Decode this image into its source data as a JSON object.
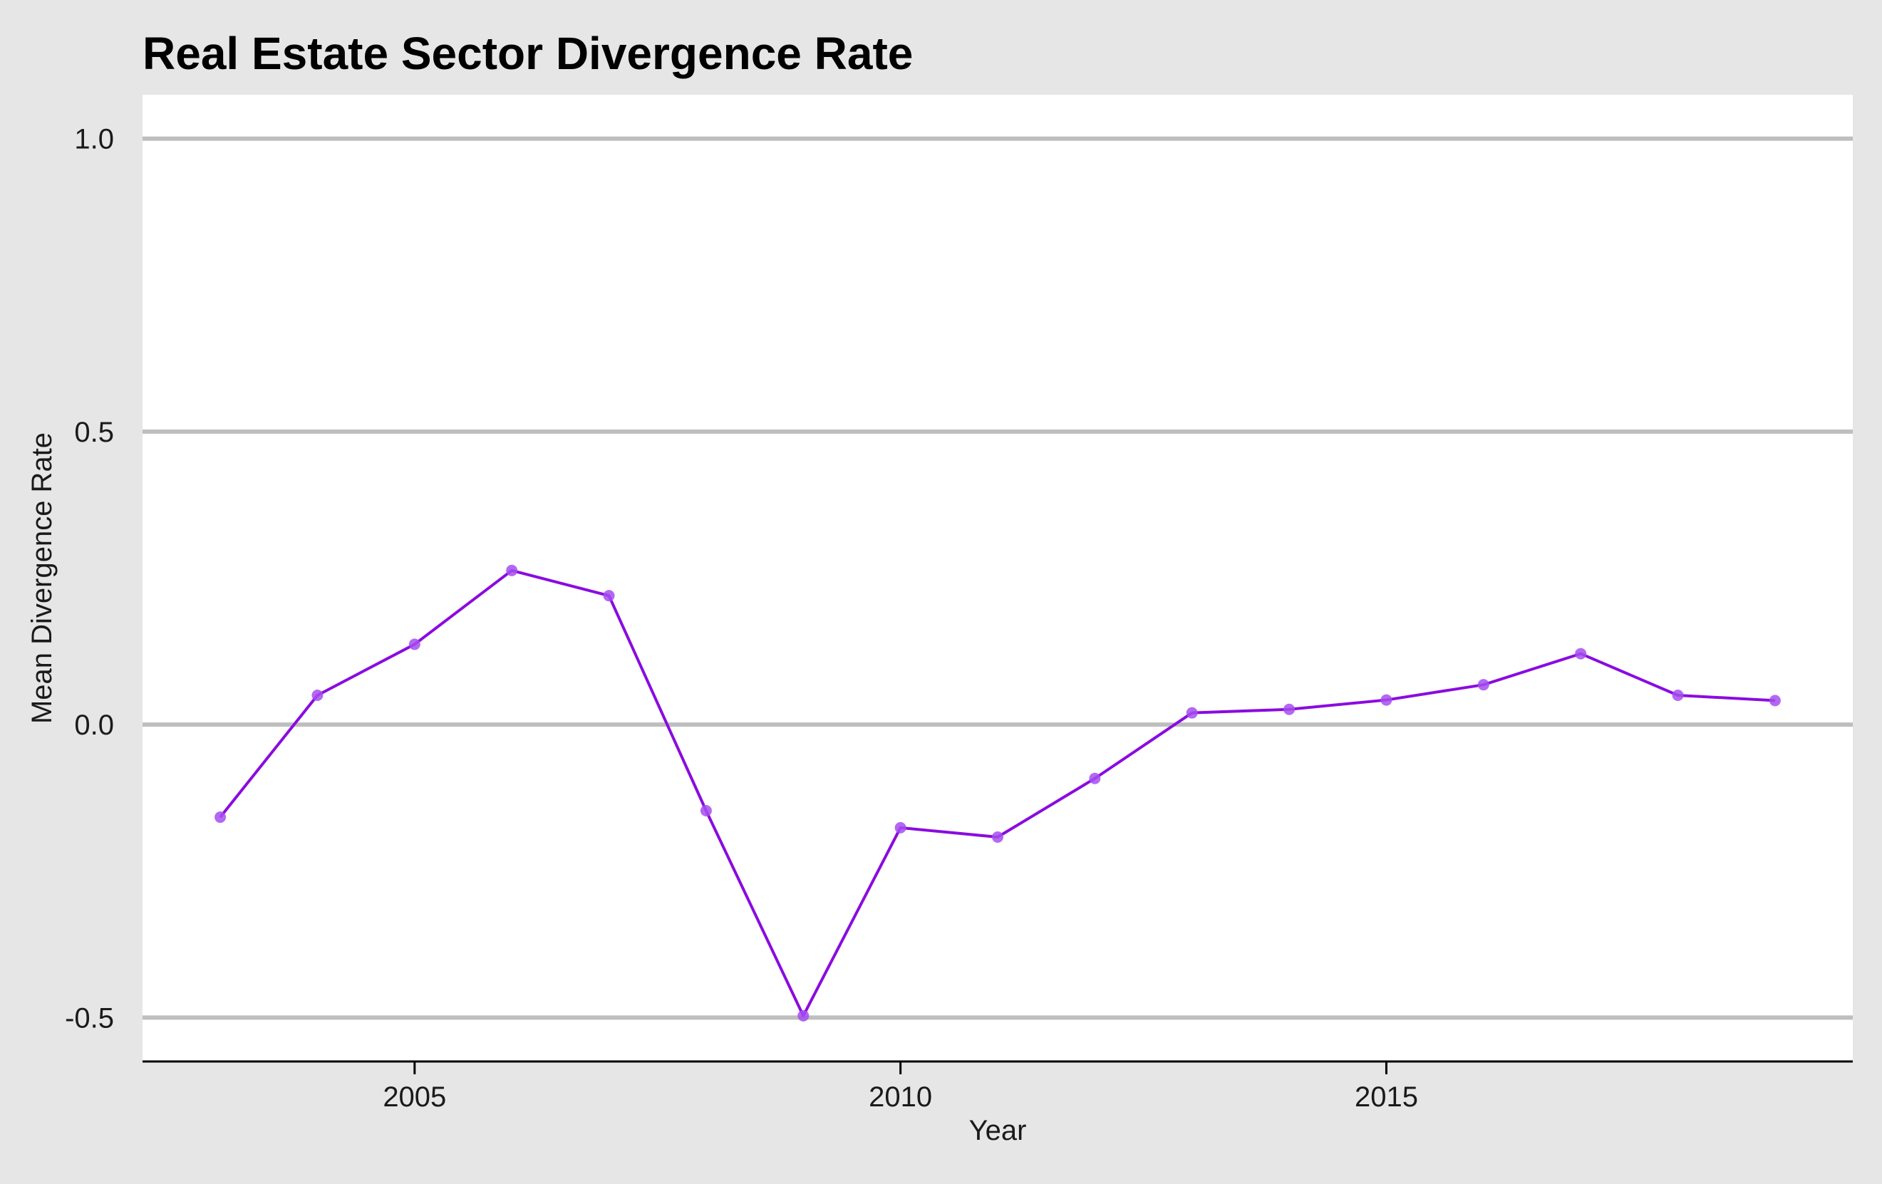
{
  "chart_data": {
    "type": "line",
    "title": "Real Estate Sector Divergence Rate",
    "xlabel": "Year",
    "ylabel": "Mean Divergence Rate",
    "x": [
      2003,
      2004,
      2005,
      2006,
      2007,
      2008,
      2009,
      2010,
      2011,
      2012,
      2013,
      2014,
      2015,
      2016,
      2017,
      2018,
      2019
    ],
    "series": [
      {
        "values": [
          -0.158,
          0.05,
          0.137,
          0.263,
          0.22,
          -0.147,
          -0.497,
          -0.176,
          -0.192,
          -0.092,
          0.02,
          0.026,
          0.042,
          0.068,
          0.121,
          0.05,
          0.041
        ],
        "color": "#8a0be0"
      }
    ],
    "xlim": [
      2002.2,
      2019.8
    ],
    "ylim": [
      -0.575,
      1.075
    ],
    "xticks": [
      2005,
      2010,
      2015
    ],
    "xtick_labels": [
      "2005",
      "2010",
      "2015"
    ],
    "yticks": [
      -0.5,
      0,
      0.5,
      1
    ],
    "ytick_labels": [
      "-0.5",
      "0.0",
      "0.5",
      "1.0"
    ],
    "grid": "horizontal",
    "colors": {
      "background": "#e6e6e6",
      "panel": "#ffffff",
      "grid": "#bebebe",
      "line": "#8a0be0",
      "point": "#a64ef0"
    }
  }
}
